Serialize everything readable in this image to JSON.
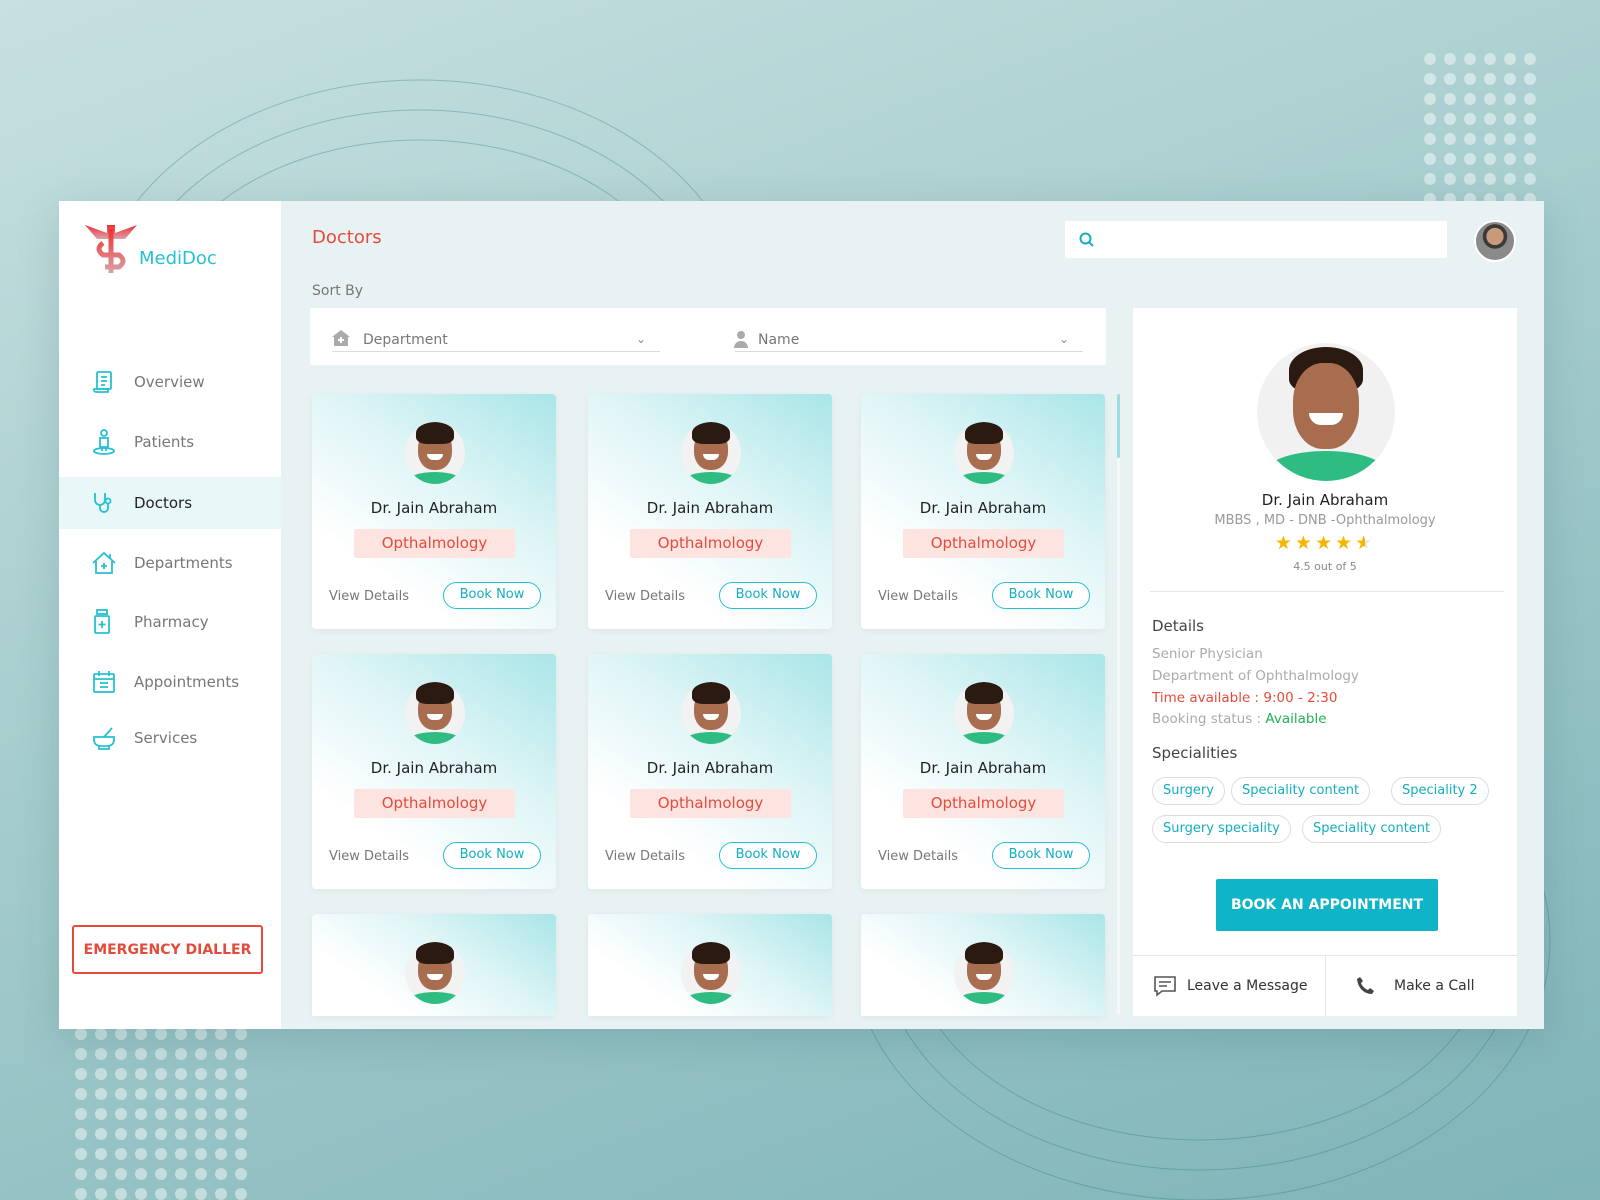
{
  "app": {
    "name": "MediDoc",
    "page_title": "Doctors"
  },
  "sidebar": {
    "items": [
      {
        "label": "Overview",
        "icon": "document-icon"
      },
      {
        "label": "Patients",
        "icon": "patient-icon"
      },
      {
        "label": "Doctors",
        "icon": "stethoscope-icon",
        "active": true
      },
      {
        "label": "Departments",
        "icon": "hospital-house-icon"
      },
      {
        "label": "Pharmacy",
        "icon": "medicine-bottle-icon"
      },
      {
        "label": "Appointments",
        "icon": "calendar-icon"
      },
      {
        "label": "Services",
        "icon": "mortar-pestle-icon"
      }
    ],
    "emergency_label": "EMERGENCY DIALLER"
  },
  "header": {
    "search_value": "",
    "search_placeholder": ""
  },
  "sort": {
    "label": "Sort By",
    "department_placeholder": "Department",
    "name_placeholder": "Name"
  },
  "cards": [
    {
      "name": "Dr. Jain Abraham",
      "department": "Opthalmology",
      "view": "View Details",
      "book": "Book Now"
    },
    {
      "name": "Dr. Jain Abraham",
      "department": "Opthalmology",
      "view": "View Details",
      "book": "Book Now"
    },
    {
      "name": "Dr. Jain Abraham",
      "department": "Opthalmology",
      "view": "View Details",
      "book": "Book Now"
    },
    {
      "name": "Dr. Jain Abraham",
      "department": "Opthalmology",
      "view": "View Details",
      "book": "Book Now"
    },
    {
      "name": "Dr. Jain Abraham",
      "department": "Opthalmology",
      "view": "View Details",
      "book": "Book Now"
    },
    {
      "name": "Dr. Jain Abraham",
      "department": "Opthalmology",
      "view": "View Details",
      "book": "Book Now"
    },
    {
      "name": "",
      "department": "",
      "view": "",
      "book": ""
    },
    {
      "name": "",
      "department": "",
      "view": "",
      "book": ""
    },
    {
      "name": "",
      "department": "",
      "view": "",
      "book": ""
    }
  ],
  "detail": {
    "name": "Dr. Jain Abraham",
    "qualification": "MBBS , MD - DNB -Ophthalmology",
    "rating": 4.5,
    "rating_text": "4.5 out of 5",
    "details_heading": "Details",
    "role": "Senior Physician",
    "department": "Department of Ophthalmology",
    "time_available": "Time available : 9:00 - 2:30",
    "booking_status_label": "Booking status : ",
    "booking_status": "Available",
    "specialities_heading": "Specialities",
    "specialities": [
      "Surgery",
      "Speciality content",
      "Speciality 2",
      "Surgery speciality",
      "Speciality content"
    ],
    "book_label": "BOOK AN APPOINTMENT",
    "message_label": "Leave a Message",
    "call_label": "Make a Call"
  },
  "colors": {
    "accent": "#25c1d1",
    "brand_red": "#e44b3b",
    "available_green": "#1fb35a",
    "star": "#f7b500"
  }
}
